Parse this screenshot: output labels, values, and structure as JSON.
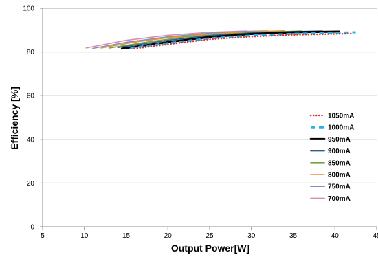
{
  "chart_data": {
    "type": "line",
    "title": "",
    "xlabel": "Output Power[W]",
    "ylabel": "Efficiency [%]",
    "xlim": [
      5,
      45
    ],
    "ylim": [
      0,
      100
    ],
    "xticks": [
      5,
      10,
      15,
      20,
      25,
      30,
      35,
      40,
      45
    ],
    "yticks": [
      0,
      20,
      40,
      60,
      80,
      100
    ],
    "grid": "horizontal",
    "legend_position": "right",
    "series": [
      {
        "name": "1050mA",
        "color": "#e0302e",
        "style": "dotted",
        "x": [
          16,
          20,
          25,
          30,
          35,
          42
        ],
        "y": [
          81.5,
          83.5,
          85.8,
          87.0,
          87.8,
          88.4
        ]
      },
      {
        "name": "1000mA",
        "color": "#2bb0e8",
        "style": "dashed",
        "x": [
          15.5,
          20,
          25,
          30,
          35,
          42.5
        ],
        "y": [
          81.8,
          84.0,
          86.2,
          87.5,
          88.3,
          89.0
        ]
      },
      {
        "name": "950mA",
        "color": "#000000",
        "style": "solid-thick",
        "x": [
          14.5,
          20,
          25,
          30,
          35,
          40.5
        ],
        "y": [
          81.5,
          84.5,
          86.8,
          88.2,
          89.0,
          89.3
        ]
      },
      {
        "name": "900mA",
        "color": "#2e5f8a",
        "style": "solid",
        "x": [
          14,
          20,
          25,
          30,
          35,
          38.5
        ],
        "y": [
          82.0,
          85.3,
          87.5,
          88.7,
          89.3,
          89.6
        ]
      },
      {
        "name": "850mA",
        "color": "#77a43b",
        "style": "solid",
        "x": [
          13,
          18,
          22,
          26,
          30,
          36
        ],
        "y": [
          81.8,
          84.8,
          86.8,
          88.0,
          88.8,
          89.6
        ]
      },
      {
        "name": "800mA",
        "color": "#e8913a",
        "style": "solid",
        "x": [
          12,
          16,
          20,
          25,
          30,
          34
        ],
        "y": [
          81.8,
          84.5,
          86.5,
          88.2,
          89.2,
          89.7
        ]
      },
      {
        "name": "750mA",
        "color": "#7a92c6",
        "style": "solid",
        "x": [
          11,
          15,
          20,
          25,
          30,
          32
        ],
        "y": [
          81.6,
          84.4,
          86.9,
          88.6,
          89.5,
          89.6
        ]
      },
      {
        "name": "700mA",
        "color": "#d98cab",
        "style": "solid",
        "x": [
          10.2,
          15,
          20,
          25,
          29.5
        ],
        "y": [
          81.8,
          85.3,
          87.6,
          89.0,
          89.6
        ]
      }
    ]
  }
}
